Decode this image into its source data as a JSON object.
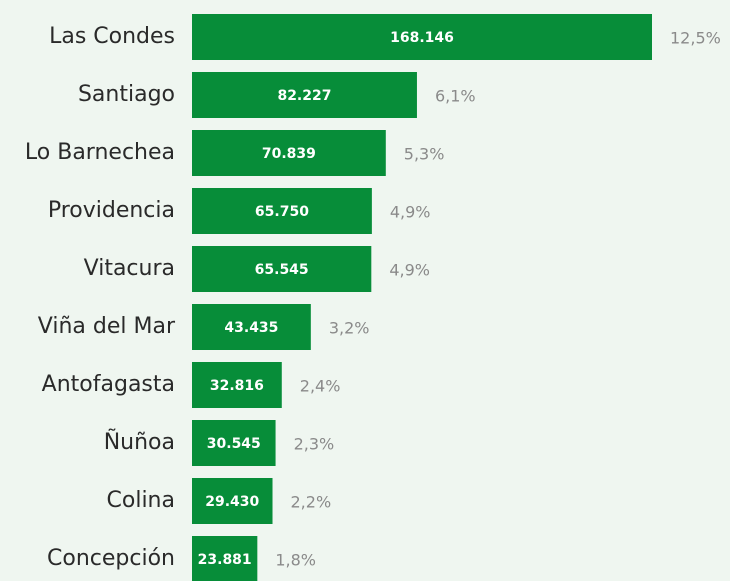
{
  "chart_data": {
    "type": "bar",
    "orientation": "horizontal",
    "categories": [
      "Las Condes",
      "Santiago",
      "Lo Barnechea",
      "Providencia",
      "Vitacura",
      "Viña del Mar",
      "Antofagasta",
      "Ñuñoa",
      "Colina",
      "Concepción"
    ],
    "values": [
      168146,
      82227,
      70839,
      65750,
      65545,
      43435,
      32816,
      30545,
      29430,
      23881
    ],
    "value_labels": [
      "168.146",
      "82.227",
      "70.839",
      "65.750",
      "65.545",
      "43.435",
      "32.816",
      "30.545",
      "29.430",
      "23.881"
    ],
    "shares": [
      12.5,
      6.1,
      5.3,
      4.9,
      4.9,
      3.2,
      2.4,
      2.3,
      2.2,
      1.8
    ],
    "share_labels": [
      "12,5%",
      "6,1%",
      "5,3%",
      "4,9%",
      "4,9%",
      "3,2%",
      "2,4%",
      "2,3%",
      "2,2%",
      "1,8%"
    ],
    "color": "#078d39"
  }
}
